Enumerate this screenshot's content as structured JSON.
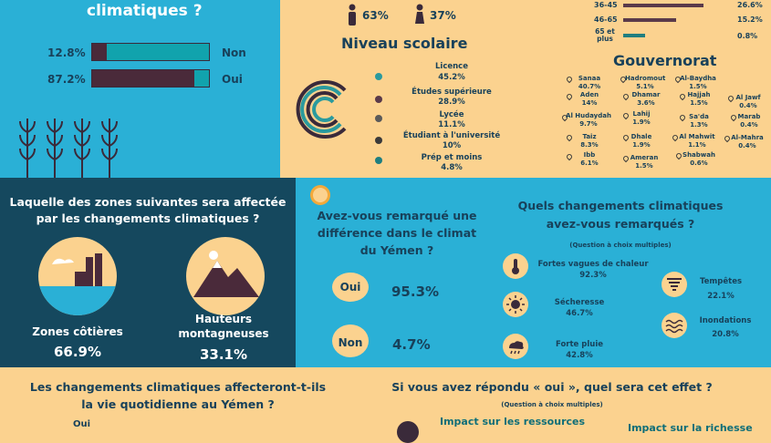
{
  "q1": {
    "title_line": "climatiques ?",
    "rows": [
      {
        "pct": "12.8%",
        "label": "Non",
        "value": 12.8
      },
      {
        "pct": "87.2%",
        "label": "Oui",
        "value": 87.2
      }
    ]
  },
  "gender": {
    "male": "63%",
    "female": "37%"
  },
  "education": {
    "title": "Niveau scolaire",
    "items": [
      {
        "label": "Licence",
        "pct": "45.2%",
        "color": "#2a9a9e"
      },
      {
        "label": "Études supérieure",
        "pct": "28.9%",
        "color": "#5a3a4a"
      },
      {
        "label": "Lycée",
        "pct": "11.1%",
        "color": "#5a5a5a"
      },
      {
        "label": "Étudiant à l'université",
        "pct": "10%",
        "color": "#3a3a3a"
      },
      {
        "label": "Prép et moins",
        "pct": "4.8%",
        "color": "#1e7e80"
      }
    ]
  },
  "age": {
    "rows": [
      {
        "label": "36-45",
        "pct": "26.6%",
        "value": 26.6,
        "color": "#5a3a4a"
      },
      {
        "label": "46-65",
        "pct": "15.2%",
        "value": 15.2,
        "color": "#5a3a4a"
      },
      {
        "label": "65 et plus",
        "pct": "0.8%",
        "value": 0.8,
        "color": "#1e7e80"
      }
    ]
  },
  "governorate": {
    "title": "Gouvernorat",
    "items": [
      {
        "name": "Sanaa",
        "pct": "40.7%"
      },
      {
        "name": "Aden",
        "pct": "14%"
      },
      {
        "name": "Al Hudaydah",
        "pct": "9.7%"
      },
      {
        "name": "Taiz",
        "pct": "8.3%"
      },
      {
        "name": "Ibb",
        "pct": "6.1%"
      },
      {
        "name": "Hadromout",
        "pct": "5.1%"
      },
      {
        "name": "Dhamar",
        "pct": "3.6%"
      },
      {
        "name": "Lahij",
        "pct": "1.9%"
      },
      {
        "name": "Dhale",
        "pct": "1.9%"
      },
      {
        "name": "Ameran",
        "pct": "1.5%"
      },
      {
        "name": "Al-Baydha",
        "pct": "1.5%"
      },
      {
        "name": "Hajjah",
        "pct": "1.5%"
      },
      {
        "name": "Sa'da",
        "pct": "1.3%"
      },
      {
        "name": "Al Mahwit",
        "pct": "1.1%"
      },
      {
        "name": "Shabwah",
        "pct": "0.6%"
      },
      {
        "name": "Al Jawf",
        "pct": "0.4%"
      },
      {
        "name": "Marab",
        "pct": "0.4%"
      },
      {
        "name": "Al-Mahra",
        "pct": "0.4%"
      }
    ]
  },
  "zones": {
    "title1": "Laquelle des zones suivantes sera affectée",
    "title2": "par les changements climatiques ?",
    "coastal_label": "Zones côtières",
    "coastal_pct": "66.9%",
    "mountain_label1": "Hauteurs",
    "mountain_label2": "montagneuses",
    "mountain_pct": "33.1%"
  },
  "noticed": {
    "title1": "Avez-vous remarqué une",
    "title2": "différence dans le climat",
    "title3": "du Yémen ?",
    "yes_label": "Oui",
    "yes_pct": "95.3%",
    "no_label": "Non",
    "no_pct": "4.7%"
  },
  "changes": {
    "title1": "Quels changements climatiques",
    "title2": "avez-vous remarqués ?",
    "subtitle": "(Question à choix multiples)",
    "heat_label": "Fortes vagues de chaleur",
    "heat_pct": "92.3%",
    "drought_label": "Sécheresse",
    "drought_pct": "46.7%",
    "rain_label": "Forte pluie",
    "rain_pct": "42.8%",
    "storm_label": "Tempêtes",
    "storm_pct": "22.1%",
    "flood_label": "Inondations",
    "flood_pct": "20.8%"
  },
  "daily": {
    "title1": "Les changements climatiques affecteront-t-ils",
    "title2": "la vie quotidienne au Yémen ?",
    "answer": "Oui"
  },
  "effect": {
    "title": "Si vous avez répondu « oui », quel sera cet effet ?",
    "subtitle": "(Question à choix multiples)",
    "item1": "Impact sur les ressources",
    "item2": "Impact sur la richesse"
  }
}
